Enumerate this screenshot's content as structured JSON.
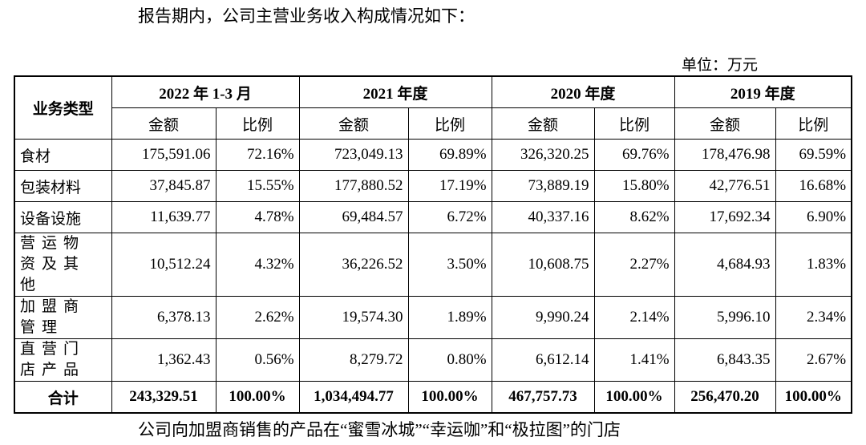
{
  "intro": "报告期内，公司主营业务收入构成情况如下：",
  "unit": "单位：万元",
  "table": {
    "row_header": "业务类型",
    "periods": [
      {
        "name": "2022 年 1-3 月",
        "amount": "金额",
        "ratio": "比例"
      },
      {
        "name": "2021 年度",
        "amount": "金额",
        "ratio": "比例"
      },
      {
        "name": "2020 年度",
        "amount": "金额",
        "ratio": "比例"
      },
      {
        "name": "2019 年度",
        "amount": "金额",
        "ratio": "比例"
      }
    ],
    "rows": [
      {
        "label": "食材",
        "cells": [
          "175,591.06",
          "72.16%",
          "723,049.13",
          "69.89%",
          "326,320.25",
          "69.76%",
          "178,476.98",
          "69.59%"
        ]
      },
      {
        "label": "包装材料",
        "cells": [
          "37,845.87",
          "15.55%",
          "177,880.52",
          "17.19%",
          "73,889.19",
          "15.80%",
          "42,776.51",
          "16.68%"
        ]
      },
      {
        "label": "设备设施",
        "cells": [
          "11,639.77",
          "4.78%",
          "69,484.57",
          "6.72%",
          "40,337.16",
          "8.62%",
          "17,692.34",
          "6.90%"
        ]
      },
      {
        "label": "营运物资及其他",
        "cells": [
          "10,512.24",
          "4.32%",
          "36,226.52",
          "3.50%",
          "10,608.75",
          "2.27%",
          "4,684.93",
          "1.83%"
        ]
      },
      {
        "label": "加盟商管理",
        "cells": [
          "6,378.13",
          "2.62%",
          "19,574.30",
          "1.89%",
          "9,990.24",
          "2.14%",
          "5,996.10",
          "2.34%"
        ]
      },
      {
        "label": "直营门店产品",
        "cells": [
          "1,362.43",
          "0.56%",
          "8,279.72",
          "0.80%",
          "6,612.14",
          "1.41%",
          "6,843.35",
          "2.67%"
        ]
      }
    ],
    "total": {
      "label": "合计",
      "cells": [
        "243,329.51",
        "100.00%",
        "1,034,494.77",
        "100.00%",
        "467,757.73",
        "100.00%",
        "256,470.20",
        "100.00%"
      ]
    }
  },
  "footer": "公司向加盟商销售的产品在“蜜雪冰城”“幸运咖”和“极拉图”的门店"
}
